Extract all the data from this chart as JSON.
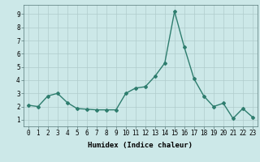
{
  "x": [
    0,
    1,
    2,
    3,
    4,
    5,
    6,
    7,
    8,
    9,
    10,
    11,
    12,
    13,
    14,
    15,
    16,
    17,
    18,
    19,
    20,
    21,
    22,
    23
  ],
  "y": [
    2.1,
    2.0,
    2.8,
    3.0,
    2.3,
    1.85,
    1.8,
    1.75,
    1.75,
    1.75,
    3.0,
    3.4,
    3.5,
    4.3,
    5.3,
    9.2,
    6.5,
    4.1,
    2.8,
    2.0,
    2.25,
    1.1,
    1.85,
    1.2
  ],
  "line_color": "#2e7d6e",
  "marker": "D",
  "markersize": 2.0,
  "linewidth": 1.0,
  "bg_color": "#cce8e8",
  "grid_color": "#b0cccc",
  "xlabel": "Humidex (Indice chaleur)",
  "xlim": [
    -0.5,
    23.5
  ],
  "ylim": [
    0.5,
    9.7
  ],
  "yticks": [
    1,
    2,
    3,
    4,
    5,
    6,
    7,
    8,
    9
  ],
  "xticks": [
    0,
    1,
    2,
    3,
    4,
    5,
    6,
    7,
    8,
    9,
    10,
    11,
    12,
    13,
    14,
    15,
    16,
    17,
    18,
    19,
    20,
    21,
    22,
    23
  ],
  "xlabel_fontsize": 6.5,
  "tick_fontsize": 5.5
}
